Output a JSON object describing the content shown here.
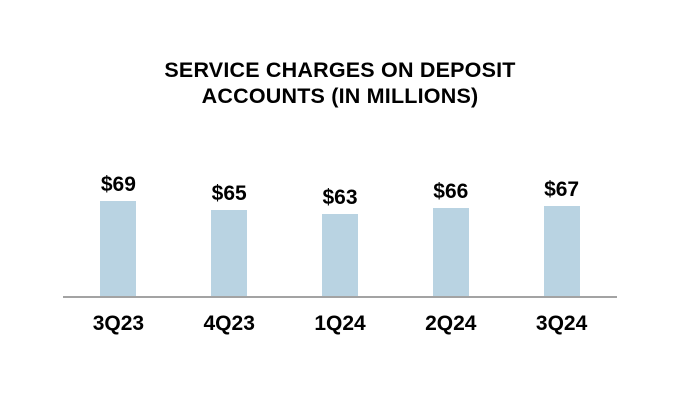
{
  "header": {
    "title_line1": "SERVICE CHARGES ON DEPOSIT",
    "title_line2": "ACCOUNTS (IN MILLIONS)"
  },
  "chart_data": {
    "type": "bar",
    "title": "SERVICE CHARGES ON DEPOSIT ACCOUNTS (IN MILLIONS)",
    "categories": [
      "3Q23",
      "4Q23",
      "1Q24",
      "2Q24",
      "3Q24"
    ],
    "values": [
      69,
      65,
      63,
      66,
      67
    ],
    "value_labels": [
      "$69",
      "$65",
      "$63",
      "$66",
      "$67"
    ],
    "xlabel": "",
    "ylabel": "",
    "ylim": [
      25,
      70
    ],
    "grid": false,
    "legend_position": "none",
    "bar_color": "#b9d3e2",
    "axis_line_color": "#a3a3a3",
    "label_color": "#000000",
    "background_color": "#ffffff"
  }
}
